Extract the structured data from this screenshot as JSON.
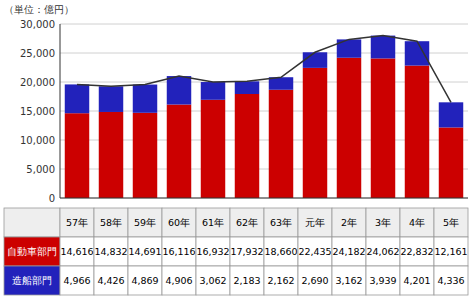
{
  "chart_data": {
    "type": "bar",
    "stacked": true,
    "y_label": "（単位：億円）",
    "categories": [
      "57年",
      "58年",
      "59年",
      "60年",
      "61年",
      "62年",
      "63年",
      "元年",
      "2年",
      "3年",
      "4年",
      "5年"
    ],
    "series": [
      {
        "name": "自動車部門",
        "color": "#cc0000",
        "values": [
          14616,
          14832,
          14691,
          16116,
          16932,
          17932,
          18660,
          22435,
          24182,
          24062,
          22832,
          12161
        ],
        "value_labels": [
          "14,616",
          "14,832",
          "14,691",
          "16,116",
          "16,932",
          "17,932",
          "18,660",
          "22,435",
          "24,182",
          "24,062",
          "22,832",
          "12,161"
        ]
      },
      {
        "name": "造船部門",
        "color": "#2222bb",
        "values": [
          4966,
          4426,
          4869,
          4906,
          3062,
          2183,
          2162,
          2690,
          3162,
          3939,
          4201,
          4336
        ],
        "value_labels": [
          "4,966",
          "4,426",
          "4,869",
          "4,906",
          "3,062",
          "2,183",
          "2,162",
          "2,690",
          "3,162",
          "3,939",
          "4,201",
          "4,336"
        ]
      },
      {
        "type": "line",
        "color": "#333333",
        "values": [
          19582,
          19258,
          19560,
          21022,
          19994,
          20115,
          20822,
          25125,
          27344,
          28001,
          27033,
          16497
        ]
      }
    ],
    "ylim": [
      0,
      30000
    ],
    "yticks": [
      0,
      {
        "value": 5000,
        "label": "5,000"
      },
      {
        "value": 10000,
        "label": "10,000"
      },
      {
        "value": 15000,
        "label": "15,000"
      },
      {
        "value": 20000,
        "label": "20,000"
      },
      {
        "value": 25000,
        "label": "25,000"
      },
      {
        "value": 30000,
        "label": "30,000"
      }
    ],
    "grid": true,
    "tick_labels": "y"
  }
}
